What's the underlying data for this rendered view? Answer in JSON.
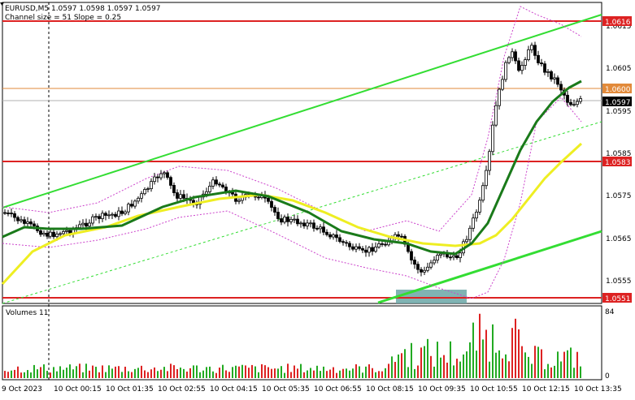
{
  "header": {
    "symbol_line": "EURUSD,M5  1.0597 1.0598 1.0597 1.0597",
    "indicator_line": "Channel size = 51 Slope = 0.25"
  },
  "volumes_panel": {
    "label": "Volumes 11",
    "scale_max": "84",
    "scale_min": "0"
  },
  "colors": {
    "background": "#ffffff",
    "candles": "#000000",
    "channel": "#33dd33",
    "ma_fast": "#1a7a1a",
    "ma_slow": "#eeee22",
    "envelope": "#cc44cc",
    "resistance": "#dd2222",
    "volume_up": "#22aa22",
    "volume_down": "#dd2222",
    "highlight_box": "#6aa6a6"
  },
  "price_axis": {
    "ticks": [
      "1.0615",
      "1.0605",
      "1.0595",
      "1.0585",
      "1.0575",
      "1.0565",
      "1.0555"
    ],
    "badges": {
      "r1": "1.0616",
      "r2": "1.0600",
      "current": "1.0597",
      "r3": "1.0583",
      "s1": "1.0551"
    }
  },
  "time_axis": {
    "labels": [
      "9 Oct 2023",
      "10 Oct 00:15",
      "10 Oct 01:35",
      "10 Oct 02:55",
      "10 Oct 04:15",
      "10 Oct 05:35",
      "10 Oct 06:55",
      "10 Oct 08:15",
      "10 Oct 09:35",
      "10 Oct 10:55",
      "10 Oct 12:15",
      "10 Oct 13:35"
    ]
  }
}
